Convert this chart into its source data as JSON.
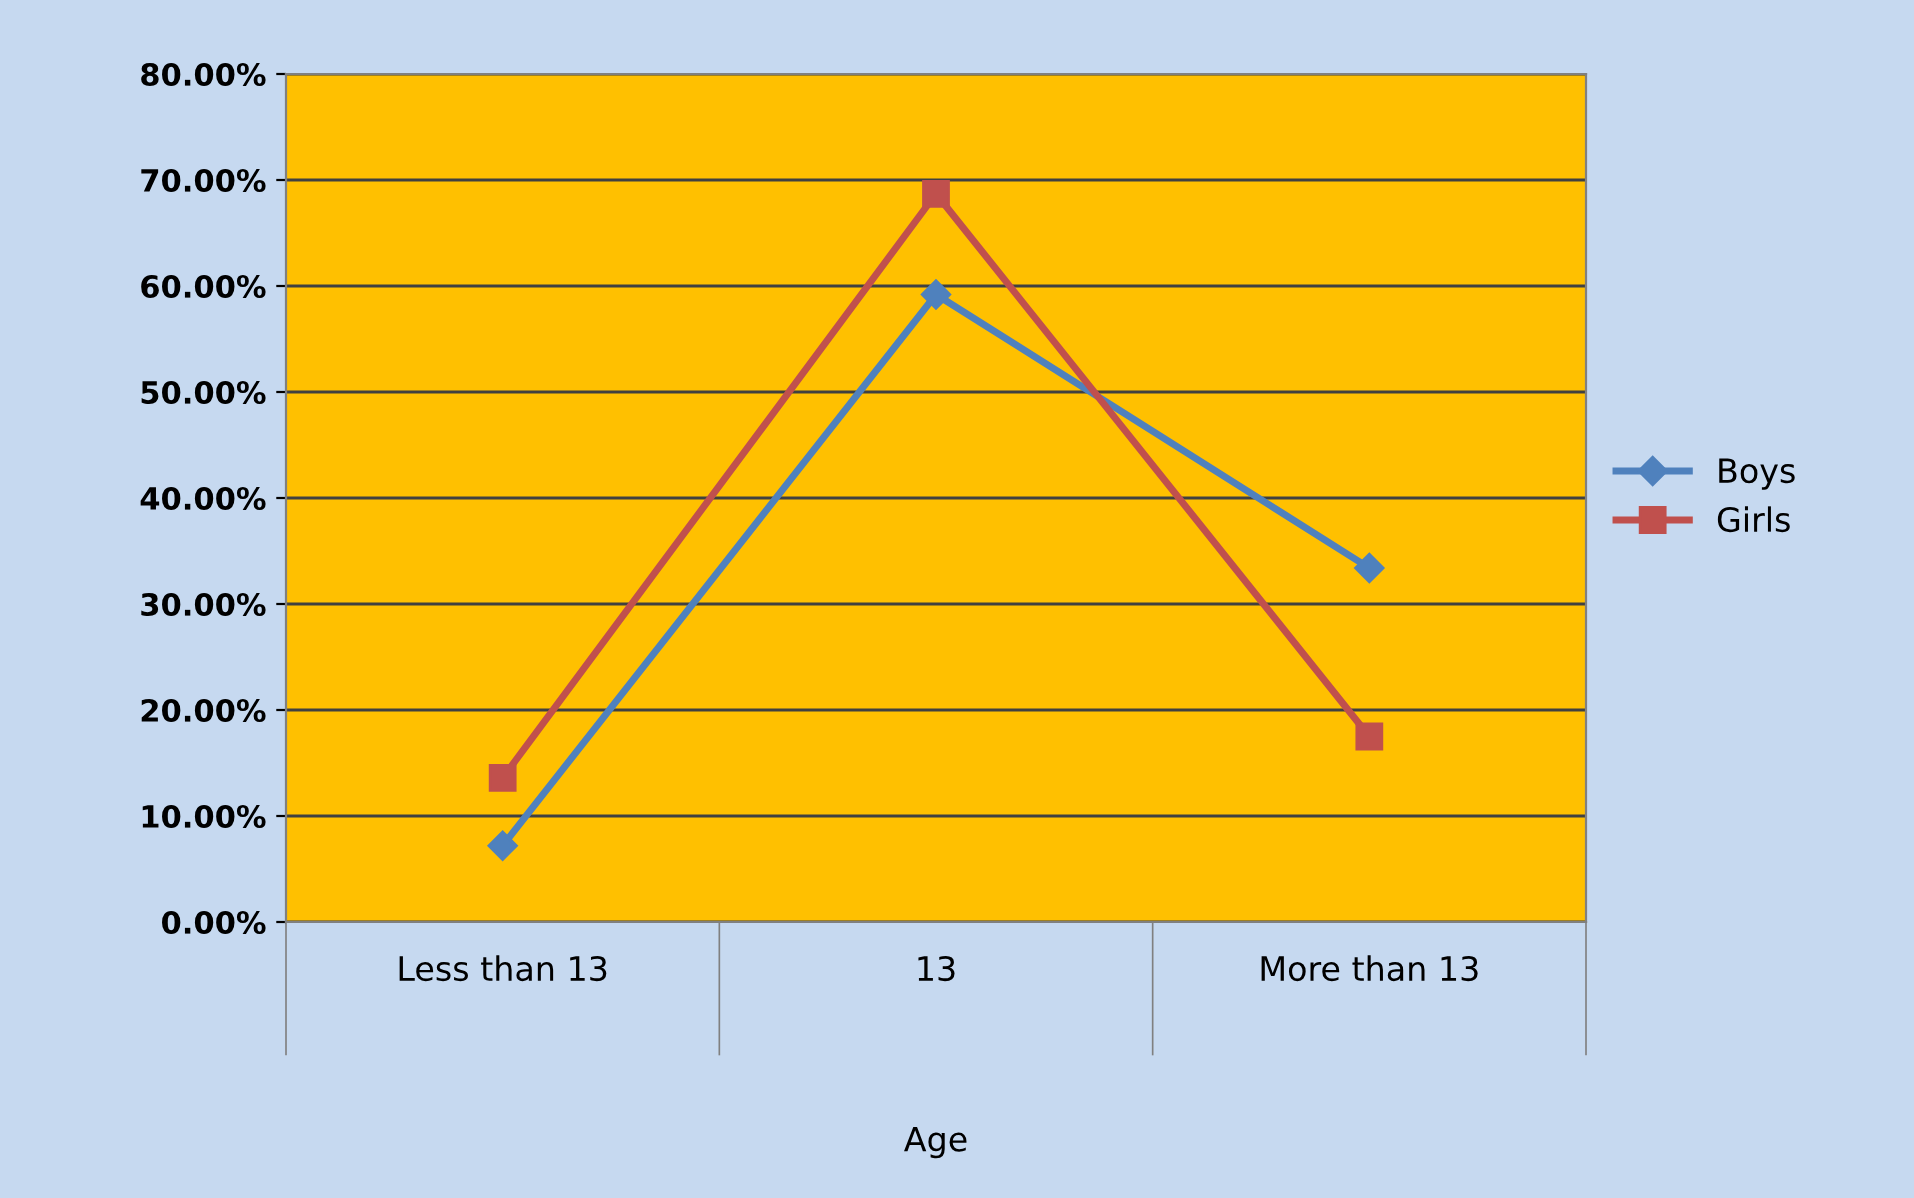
{
  "chart_data": {
    "type": "line",
    "xlabel": "Age",
    "categories": [
      "Less than 13",
      "13",
      "More than 13"
    ],
    "series": [
      {
        "name": "Boys",
        "color": "#4f81bd",
        "marker": "diamond",
        "values": [
          7.2,
          59.2,
          33.4
        ]
      },
      {
        "name": "Girls",
        "color": "#c0504d",
        "marker": "square",
        "values": [
          13.6,
          68.7,
          17.5
        ]
      }
    ],
    "ylim": [
      0,
      80
    ],
    "yticks": [
      {
        "value": 0,
        "label": "0.00%"
      },
      {
        "value": 10,
        "label": "10.00%"
      },
      {
        "value": 20,
        "label": "20.00%"
      },
      {
        "value": 30,
        "label": "30.00%"
      },
      {
        "value": 40,
        "label": "40.00%"
      },
      {
        "value": 50,
        "label": "50.00%"
      },
      {
        "value": 60,
        "label": "60.00%"
      },
      {
        "value": 70,
        "label": "70.00%"
      },
      {
        "value": 80,
        "label": "80.00%"
      }
    ],
    "grid": "y",
    "legend": "right",
    "line_style": "solid"
  }
}
